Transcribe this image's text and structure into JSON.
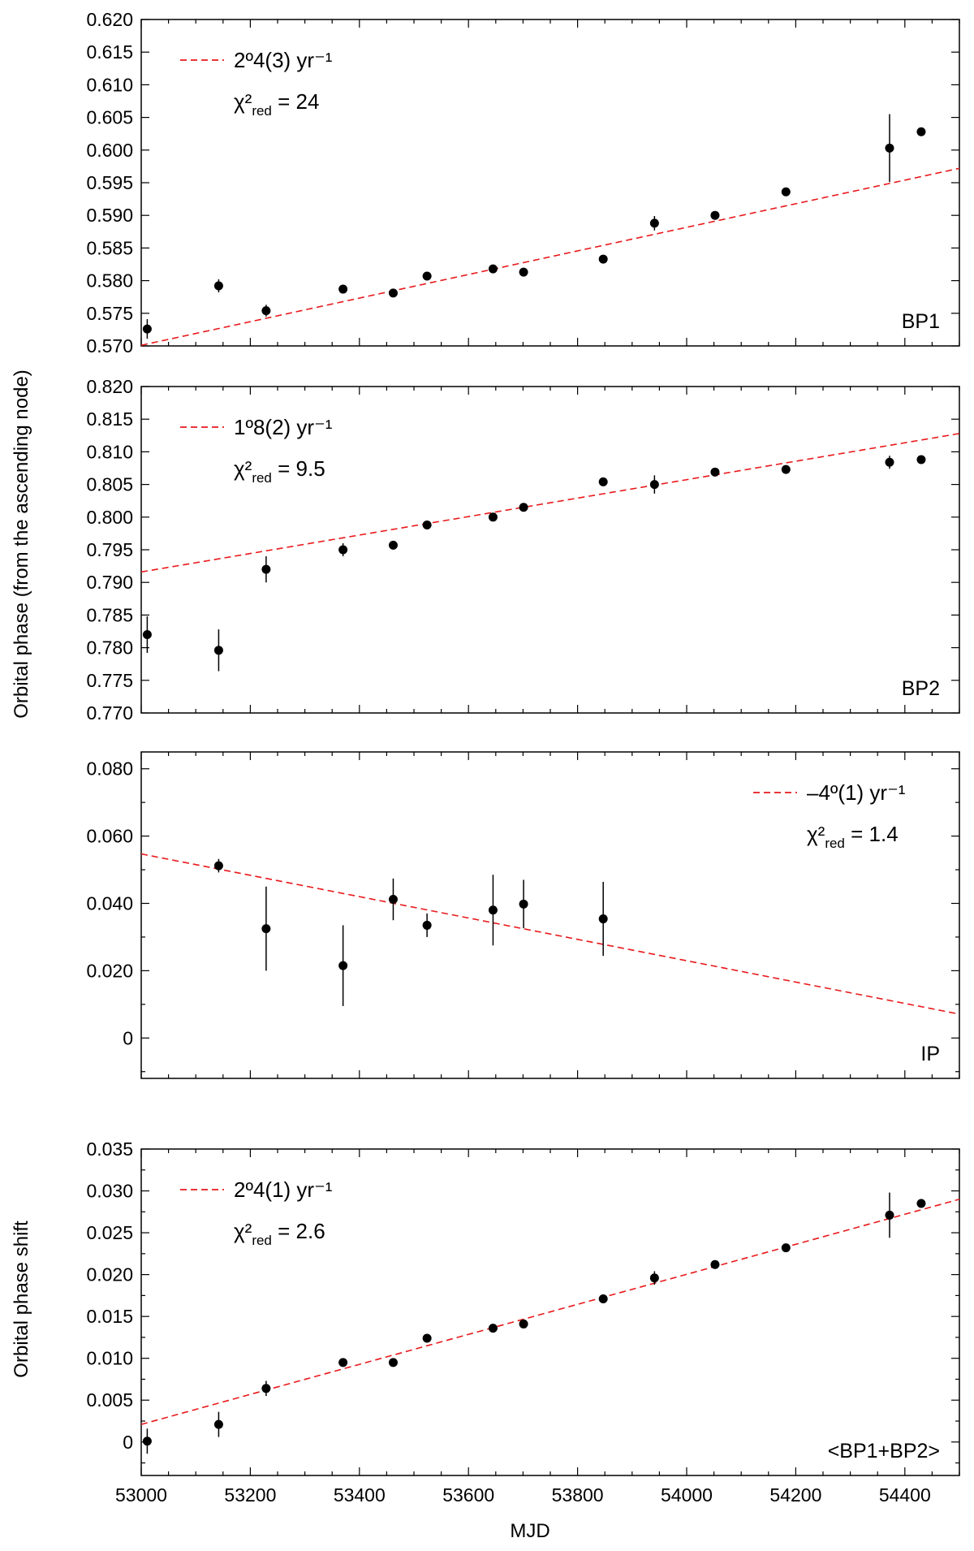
{
  "chart_data": [
    {
      "type": "scatter",
      "panel_label": "BP1",
      "legend": "2º4(3) yr⁻¹",
      "chi_prefix": "χ²",
      "chi_sub": "red",
      "chi_value": " = 24",
      "ylim": [
        0.57,
        0.62
      ],
      "yticks": [
        "0.570",
        "0.575",
        "0.580",
        "0.585",
        "0.590",
        "0.595",
        "0.600",
        "0.605",
        "0.610",
        "0.615",
        "0.620"
      ],
      "line_color": "#e8191c",
      "fit_line": [
        [
          53000,
          0.5701
        ],
        [
          54500,
          0.5972
        ]
      ],
      "points": [
        {
          "x": 53011,
          "y": 0.5726,
          "err": 0.0015
        },
        {
          "x": 53142,
          "y": 0.5792,
          "err": 0.001
        },
        {
          "x": 53229,
          "y": 0.5754,
          "err": 0.0009
        },
        {
          "x": 53370,
          "y": 0.5787,
          "err": 0.0004
        },
        {
          "x": 53462,
          "y": 0.5781,
          "err": 0.0004
        },
        {
          "x": 53524,
          "y": 0.5807,
          "err": 0.0004
        },
        {
          "x": 53645,
          "y": 0.5818,
          "err": 0.0004
        },
        {
          "x": 53701,
          "y": 0.5813,
          "err": 0.0004
        },
        {
          "x": 53847,
          "y": 0.5833,
          "err": 0.0004
        },
        {
          "x": 53941,
          "y": 0.5888,
          "err": 0.0011
        },
        {
          "x": 54052,
          "y": 0.59,
          "err": 0.0004
        },
        {
          "x": 54182,
          "y": 0.5936,
          "err": 0.0004
        },
        {
          "x": 54372,
          "y": 0.6003,
          "err": 0.0052
        },
        {
          "x": 54430,
          "y": 0.6028,
          "err": 0.0006
        }
      ]
    },
    {
      "type": "scatter",
      "panel_label": "BP2",
      "legend": "1º8(2) yr⁻¹",
      "chi_prefix": "χ²",
      "chi_sub": "red",
      "chi_value": " = 9.5",
      "ylim": [
        0.77,
        0.82
      ],
      "yticks": [
        "0.770",
        "0.775",
        "0.780",
        "0.785",
        "0.790",
        "0.795",
        "0.800",
        "0.805",
        "0.810",
        "0.815",
        "0.820"
      ],
      "line_color": "#e8191c",
      "fit_line": [
        [
          53000,
          0.7916
        ],
        [
          54500,
          0.8128
        ]
      ],
      "points": [
        {
          "x": 53011,
          "y": 0.782,
          "err": 0.0028
        },
        {
          "x": 53142,
          "y": 0.7796,
          "err": 0.0032
        },
        {
          "x": 53229,
          "y": 0.792,
          "err": 0.002
        },
        {
          "x": 53370,
          "y": 0.795,
          "err": 0.001
        },
        {
          "x": 53462,
          "y": 0.7957,
          "err": 0.0006
        },
        {
          "x": 53524,
          "y": 0.7988,
          "err": 0.0004
        },
        {
          "x": 53645,
          "y": 0.8,
          "err": 0.0004
        },
        {
          "x": 53701,
          "y": 0.8015,
          "err": 0.0004
        },
        {
          "x": 53847,
          "y": 0.8054,
          "err": 0.0004
        },
        {
          "x": 53941,
          "y": 0.805,
          "err": 0.0014
        },
        {
          "x": 54052,
          "y": 0.8069,
          "err": 0.0004
        },
        {
          "x": 54182,
          "y": 0.8073,
          "err": 0.0004
        },
        {
          "x": 54372,
          "y": 0.8084,
          "err": 0.001
        },
        {
          "x": 54430,
          "y": 0.8088,
          "err": 0.0004
        }
      ]
    },
    {
      "type": "scatter",
      "panel_label": "IP",
      "legend": "–4º(1) yr⁻¹",
      "chi_prefix": "χ²",
      "chi_sub": "red",
      "chi_value": " = 1.4",
      "ylim": [
        -0.012,
        0.085
      ],
      "yticks": [
        "0",
        "0.020",
        "0.040",
        "0.060",
        "0.080"
      ],
      "ytick_values": [
        0,
        0.02,
        0.04,
        0.06,
        0.08
      ],
      "line_color": "#e8191c",
      "fit_line": [
        [
          53000,
          0.0547
        ],
        [
          54500,
          0.0071
        ]
      ],
      "points": [
        {
          "x": 53142,
          "y": 0.0512,
          "err": 0.002
        },
        {
          "x": 53229,
          "y": 0.0325,
          "err": 0.0125
        },
        {
          "x": 53370,
          "y": 0.0215,
          "err": 0.012
        },
        {
          "x": 53462,
          "y": 0.0412,
          "err": 0.0062
        },
        {
          "x": 53524,
          "y": 0.0335,
          "err": 0.0035
        },
        {
          "x": 53645,
          "y": 0.038,
          "err": 0.0105
        },
        {
          "x": 53701,
          "y": 0.0398,
          "err": 0.0072
        },
        {
          "x": 53847,
          "y": 0.0354,
          "err": 0.011
        }
      ]
    },
    {
      "type": "scatter",
      "panel_label": "<BP1+BP2>",
      "legend": "2º4(1) yr⁻¹",
      "chi_prefix": "χ²",
      "chi_sub": "red",
      "chi_value": " = 2.6",
      "ylim": [
        -0.004,
        0.035
      ],
      "yticks": [
        "0",
        "0.005",
        "0.010",
        "0.015",
        "0.020",
        "0.025",
        "0.030",
        "0.035"
      ],
      "ytick_values": [
        0,
        0.005,
        0.01,
        0.015,
        0.02,
        0.025,
        0.03,
        0.035
      ],
      "line_color": "#e8191c",
      "fit_line": [
        [
          53000,
          0.0021
        ],
        [
          54500,
          0.029
        ]
      ],
      "points": [
        {
          "x": 53011,
          "y": 0.0001,
          "err": 0.0015
        },
        {
          "x": 53142,
          "y": 0.0021,
          "err": 0.0015
        },
        {
          "x": 53229,
          "y": 0.0064,
          "err": 0.0009
        },
        {
          "x": 53370,
          "y": 0.0095,
          "err": 0.0004
        },
        {
          "x": 53462,
          "y": 0.0095,
          "err": 0.0004
        },
        {
          "x": 53524,
          "y": 0.0124,
          "err": 0.0004
        },
        {
          "x": 53645,
          "y": 0.0136,
          "err": 0.0004
        },
        {
          "x": 53701,
          "y": 0.0141,
          "err": 0.0004
        },
        {
          "x": 53847,
          "y": 0.0171,
          "err": 0.0004
        },
        {
          "x": 53941,
          "y": 0.0196,
          "err": 0.0008
        },
        {
          "x": 54052,
          "y": 0.0212,
          "err": 0.0004
        },
        {
          "x": 54182,
          "y": 0.0232,
          "err": 0.0004
        },
        {
          "x": 54372,
          "y": 0.0271,
          "err": 0.0027
        },
        {
          "x": 54430,
          "y": 0.0285,
          "err": 0.0004
        }
      ]
    }
  ],
  "xaxis": {
    "label": "MJD",
    "xlim": [
      53000,
      54500
    ],
    "ticks": [
      "53000",
      "53200",
      "53400",
      "53600",
      "53800",
      "54000",
      "54200",
      "54400"
    ],
    "tick_values": [
      53000,
      53200,
      53400,
      53600,
      53800,
      54000,
      54200,
      54400
    ]
  },
  "ylabels": {
    "top": "Orbital phase (from the ascending node)",
    "bottom": "Orbital phase shift"
  }
}
